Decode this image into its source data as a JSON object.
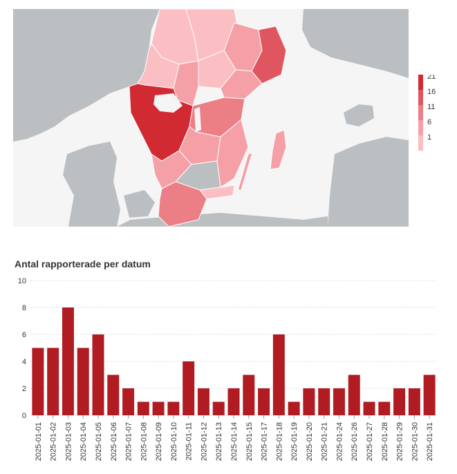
{
  "map": {
    "colors": {
      "sea": "#f5f5f5",
      "land": "#bbbfc2",
      "border": "#ffffff",
      "scale": [
        "#fbbec3",
        "#f5a0a7",
        "#ec7e86",
        "#e05660",
        "#d12a32"
      ]
    },
    "regions": [
      {
        "name": "Dalarna",
        "value": 1
      },
      {
        "name": "Gävleborg",
        "value": 1
      },
      {
        "name": "Värmland",
        "value": 1
      },
      {
        "name": "Västmanland",
        "value": 1
      },
      {
        "name": "Uppsala",
        "value": 3
      },
      {
        "name": "Stockholm",
        "value": 14
      },
      {
        "name": "Örebro",
        "value": 2
      },
      {
        "name": "Södermanland",
        "value": 3
      },
      {
        "name": "Östergötland",
        "value": 10
      },
      {
        "name": "Västra Götaland",
        "value": 21
      },
      {
        "name": "Jönköping",
        "value": 3
      },
      {
        "name": "Kalmar",
        "value": 2
      },
      {
        "name": "Halland",
        "value": 2
      },
      {
        "name": "Kronoberg",
        "value": 0
      },
      {
        "name": "Blekinge",
        "value": 1
      },
      {
        "name": "Skåne",
        "value": 11
      },
      {
        "name": "Gotland",
        "value": 2
      }
    ],
    "legend": {
      "labels": [
        "21",
        "16",
        "11",
        "6",
        "1"
      ]
    }
  },
  "chart_data": {
    "type": "bar",
    "title": "Antal rapporterade per datum",
    "categories": [
      "2025-01-01",
      "2025-01-02",
      "2025-01-03",
      "2025-01-04",
      "2025-01-05",
      "2025-01-06",
      "2025-01-07",
      "2025-01-08",
      "2025-01-09",
      "2025-01-10",
      "2025-01-11",
      "2025-01-12",
      "2025-01-13",
      "2025-01-14",
      "2025-01-15",
      "2025-01-17",
      "2025-01-18",
      "2025-01-19",
      "2025-01-20",
      "2025-01-21",
      "2025-01-24",
      "2025-01-26",
      "2025-01-27",
      "2025-01-28",
      "2025-01-29",
      "2025-01-30",
      "2025-01-31"
    ],
    "values": [
      5,
      5,
      8,
      5,
      6,
      3,
      2,
      1,
      1,
      1,
      4,
      2,
      1,
      2,
      3,
      2,
      6,
      1,
      2,
      2,
      2,
      3,
      1,
      1,
      2,
      2,
      3
    ],
    "ylim": [
      0,
      10
    ],
    "yticks": [
      0,
      2,
      4,
      6,
      8,
      10
    ],
    "grid": true,
    "bar_color": "#b01c22",
    "xlabel": "",
    "ylabel": ""
  }
}
